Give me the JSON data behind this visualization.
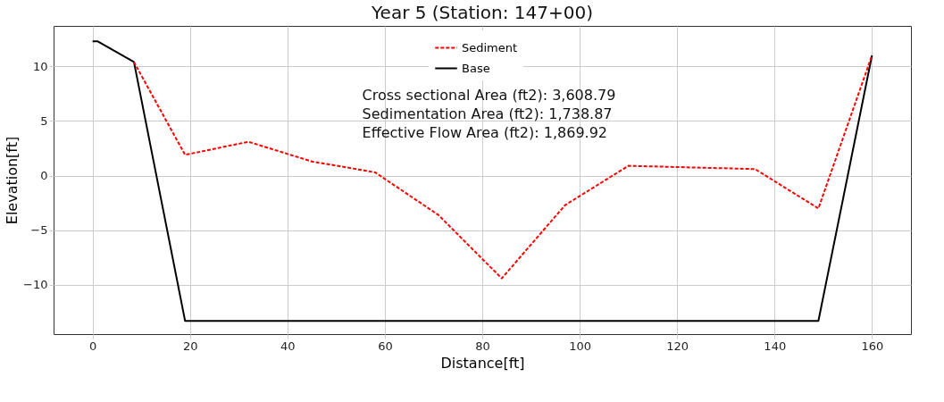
{
  "chart_data": {
    "type": "line",
    "title": "Year 5 (Station: 147+00)",
    "xlabel": "Distance[ft]",
    "ylabel": "Elevation[ft]",
    "series": [
      {
        "name": "Sediment",
        "color": "#ff0000",
        "line_style": "dashed",
        "x": [
          8.5,
          19,
          32,
          45,
          58,
          71,
          84,
          97,
          110,
          136,
          149,
          160
        ],
        "values": [
          10.4,
          1.9,
          3.1,
          1.3,
          0.3,
          -3.6,
          -9.4,
          -2.7,
          0.9,
          0.6,
          -3.0,
          11
        ]
      },
      {
        "name": "Base",
        "color": "#000000",
        "line_style": "solid",
        "x": [
          0,
          1,
          8.5,
          19,
          149,
          160
        ],
        "values": [
          12.3,
          12.3,
          10.4,
          -13.3,
          -13.3,
          11
        ]
      }
    ],
    "xlim": [
      -8,
      168
    ],
    "ylim": [
      -14.5,
      13.7
    ],
    "xticks": [
      0,
      20,
      40,
      60,
      80,
      100,
      120,
      140,
      160
    ],
    "yticks": [
      -10,
      -5,
      0,
      5,
      10
    ],
    "annotations": [
      "Cross sectional Area (ft2): 3,608.79",
      "Sedimentation Area (ft2): 1,738.87",
      "Effective Flow Area (ft2): 1,869.92"
    ],
    "grid": true,
    "legend": "top",
    "marker": "none"
  }
}
